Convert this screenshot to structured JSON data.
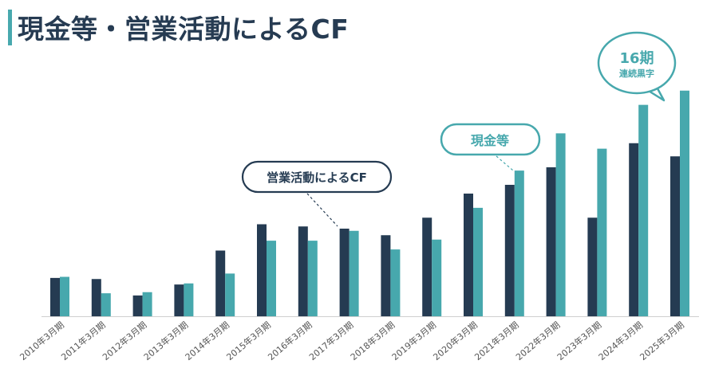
{
  "page": {
    "title": "現金等・営業活動によるCF"
  },
  "colors": {
    "operating_cf": "#253b52",
    "cash": "#47a8ad",
    "axis": "#cfcfcf",
    "tick_text": "#555555"
  },
  "annotations": {
    "operating_cf_label": "営業活動によるCF",
    "cash_label": "現金等",
    "profit_badge_number": "16期",
    "profit_badge_text": "連続黒字"
  },
  "chart_data": {
    "type": "bar",
    "title": "現金等・営業活動によるCF",
    "xlabel": "",
    "ylabel": "",
    "ylim": [
      0,
      100
    ],
    "grid": false,
    "categories": [
      "2010年3月期",
      "2011年3月期",
      "2012年3月期",
      "2013年3月期",
      "2014年3月期",
      "2015年3月期",
      "2016年3月期",
      "2017年3月期",
      "2018年3月期",
      "2019年3月期",
      "2020年3月期",
      "2021年3月期",
      "2022年3月期",
      "2023年3月期",
      "2024年3月期",
      "2025年3月期"
    ],
    "series": [
      {
        "name": "営業活動によるCF",
        "values": [
          17.5,
          17,
          9.5,
          14.5,
          30,
          42,
          41,
          40,
          37,
          45,
          56,
          60,
          68,
          45,
          79,
          73
        ]
      },
      {
        "name": "現金等",
        "values": [
          18,
          10.5,
          11,
          15,
          19.5,
          34.5,
          34.5,
          39,
          30.5,
          35,
          49.5,
          66.5,
          83.5,
          76.5,
          96.5,
          103
        ]
      }
    ]
  }
}
